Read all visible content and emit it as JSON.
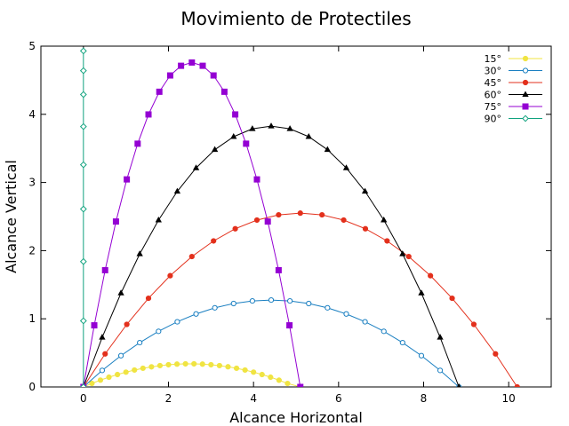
{
  "chart_data": {
    "type": "line",
    "title": "Movimiento de Protectiles",
    "xlabel": "Alcance Horizontal",
    "ylabel": "Alcance Vertical",
    "xlim": [
      -1,
      11
    ],
    "ylim": [
      0,
      5
    ],
    "xticks": [
      0,
      2,
      4,
      6,
      8,
      10
    ],
    "yticks": [
      0,
      1,
      2,
      3,
      4,
      5
    ],
    "grid": false,
    "legend_position": "top-right",
    "series": [
      {
        "name": "15°",
        "color": "#f0e442",
        "marker": "circle",
        "x": [
          0,
          0.2,
          0.4,
          0.6,
          0.8,
          1.0,
          1.2,
          1.4,
          1.6,
          1.8,
          2.0,
          2.2,
          2.4,
          2.6,
          2.8,
          3.0,
          3.2,
          3.4,
          3.6,
          3.8,
          4.0,
          4.2,
          4.4,
          4.6,
          4.8,
          5.1
        ],
        "y": [
          0,
          0.052,
          0.1,
          0.143,
          0.182,
          0.217,
          0.248,
          0.274,
          0.295,
          0.313,
          0.326,
          0.335,
          0.339,
          0.339,
          0.335,
          0.326,
          0.313,
          0.296,
          0.274,
          0.248,
          0.217,
          0.182,
          0.143,
          0.099,
          0.051,
          0
        ]
      },
      {
        "name": "30°",
        "color": "#1a7fc1",
        "marker": "circle-open",
        "x": [
          0,
          0.441,
          0.883,
          1.324,
          1.766,
          2.207,
          2.649,
          3.09,
          3.532,
          3.973,
          4.415,
          4.856,
          5.298,
          5.739,
          6.181,
          6.622,
          7.064,
          7.505,
          7.947,
          8.388,
          8.83
        ],
        "y": [
          0,
          0.243,
          0.459,
          0.65,
          0.816,
          0.956,
          1.071,
          1.161,
          1.224,
          1.262,
          1.275,
          1.262,
          1.224,
          1.161,
          1.071,
          0.956,
          0.816,
          0.65,
          0.459,
          0.243,
          0
        ]
      },
      {
        "name": "45°",
        "color": "#e3301c",
        "marker": "circle",
        "x": [
          0,
          0.51,
          1.02,
          1.53,
          2.04,
          2.55,
          3.06,
          3.57,
          4.08,
          4.59,
          5.1,
          5.61,
          6.12,
          6.63,
          7.14,
          7.65,
          8.16,
          8.67,
          9.18,
          9.69,
          10.2
        ],
        "y": [
          0,
          0.485,
          0.918,
          1.301,
          1.632,
          1.913,
          2.142,
          2.321,
          2.448,
          2.525,
          2.55,
          2.525,
          2.448,
          2.321,
          2.142,
          1.913,
          1.632,
          1.301,
          0.918,
          0.485,
          0
        ]
      },
      {
        "name": "60°",
        "color": "#000000",
        "marker": "triangle",
        "x": [
          0,
          0.441,
          0.883,
          1.324,
          1.766,
          2.207,
          2.649,
          3.09,
          3.532,
          3.973,
          4.415,
          4.856,
          5.298,
          5.739,
          6.181,
          6.622,
          7.064,
          7.505,
          7.947,
          8.388,
          8.83
        ],
        "y": [
          0,
          0.727,
          1.377,
          1.951,
          2.448,
          2.869,
          3.213,
          3.481,
          3.672,
          3.787,
          3.826,
          3.787,
          3.672,
          3.481,
          3.213,
          2.869,
          2.448,
          1.951,
          1.377,
          0.727,
          0
        ]
      },
      {
        "name": "75°",
        "color": "#9400d3",
        "marker": "square",
        "x": [
          0,
          0.255,
          0.51,
          0.765,
          1.02,
          1.275,
          1.53,
          1.785,
          2.04,
          2.295,
          2.55,
          2.805,
          3.06,
          3.315,
          3.57,
          3.825,
          4.08,
          4.335,
          4.59,
          4.845,
          5.1
        ],
        "y": [
          0,
          0.904,
          1.713,
          2.427,
          3.045,
          3.569,
          3.998,
          4.331,
          4.57,
          4.712,
          4.76,
          4.712,
          4.57,
          4.331,
          3.998,
          3.569,
          3.045,
          2.427,
          1.713,
          0.904,
          0
        ]
      },
      {
        "name": "90°",
        "color": "#11a37f",
        "marker": "diamond-open",
        "x": [
          0,
          0,
          0,
          0,
          0,
          0,
          0,
          0,
          0
        ],
        "y": [
          0,
          0.97,
          1.84,
          2.61,
          3.26,
          3.82,
          4.29,
          4.64,
          4.93
        ]
      }
    ]
  }
}
